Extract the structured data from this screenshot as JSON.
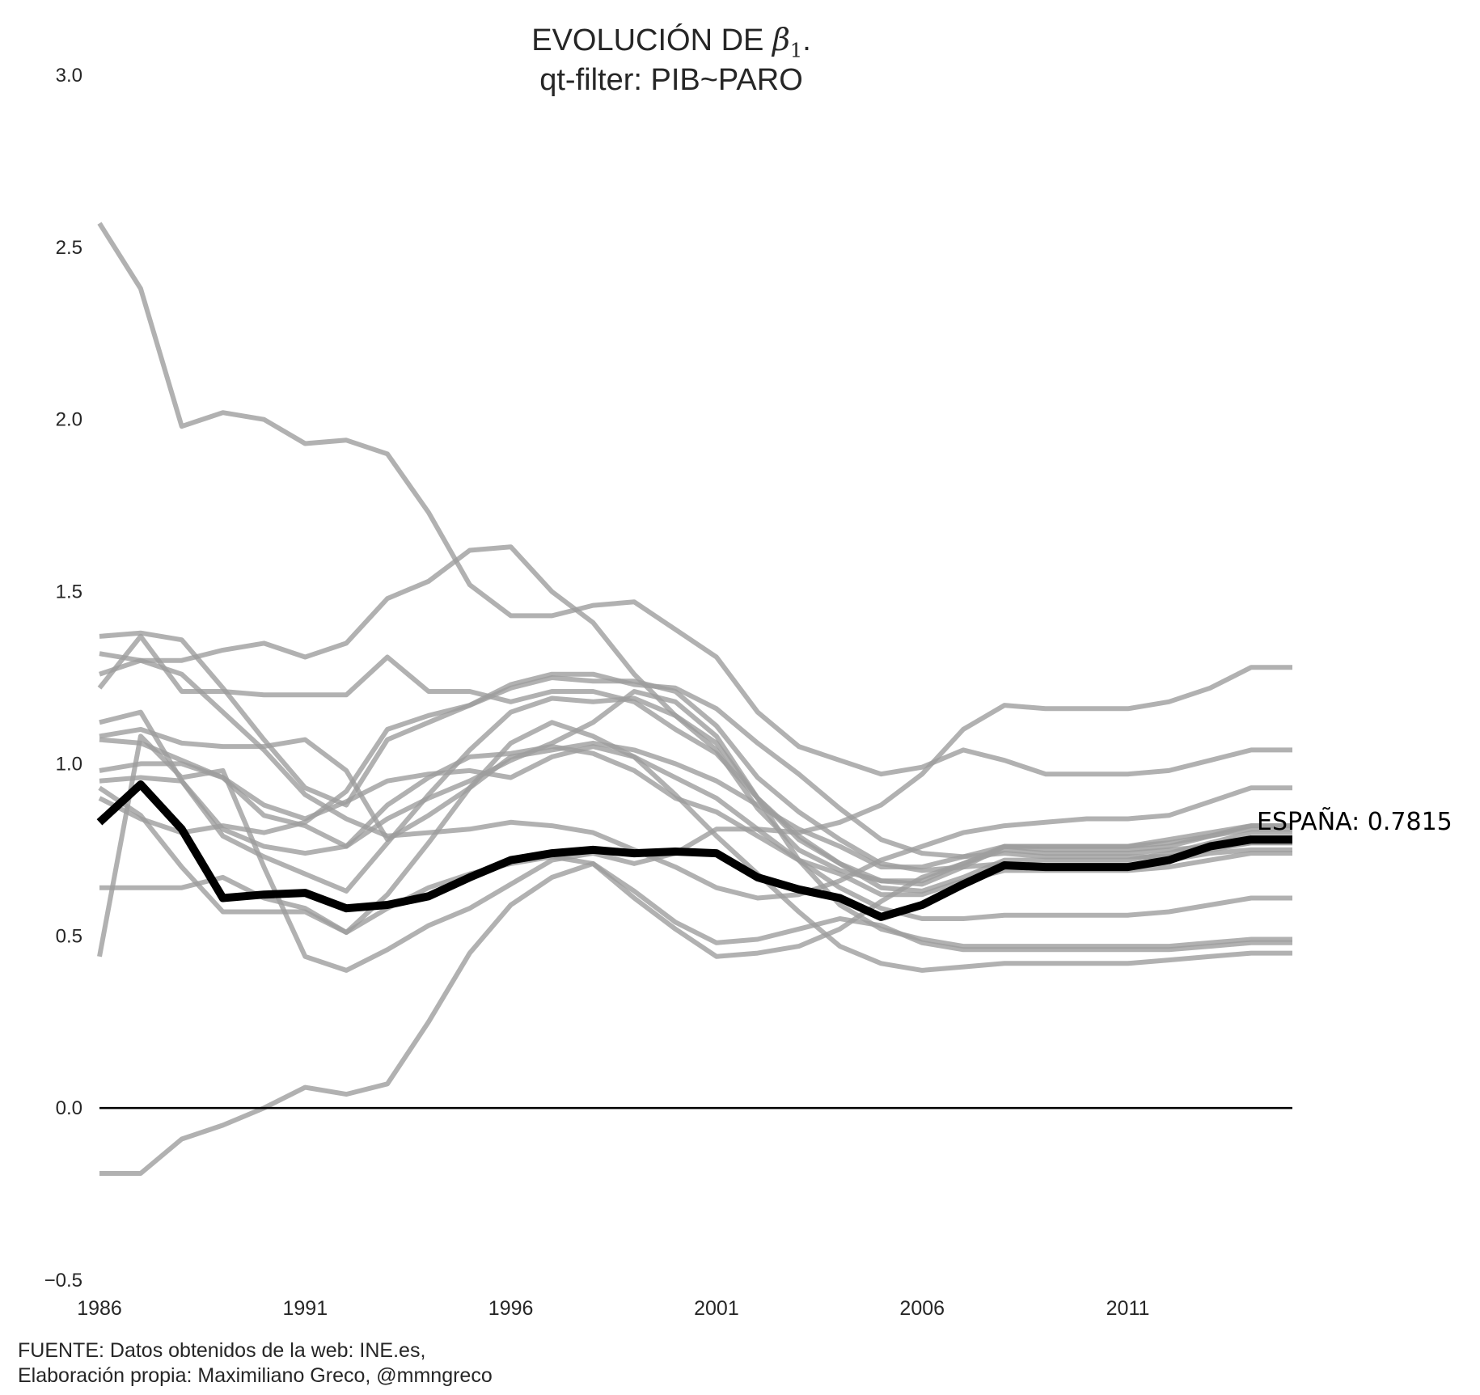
{
  "title": {
    "prefix": "EVOLUCIÓN DE ",
    "symbol": "β",
    "symbol_sub": "1",
    "suffix": ".",
    "line2": "qt-filter: PIB~PARO"
  },
  "source": {
    "line1": "FUENTE: Datos obtenidos de la web: INE.es,",
    "line2": "Elaboración propia: Maximiliano Greco, @mmngreco"
  },
  "colors": {
    "regions": "#9e9e9e",
    "spain": "#000000",
    "zero_line": "#000000",
    "text": "#262626"
  },
  "chart_data": {
    "type": "line",
    "x": [
      1986,
      1987,
      1988,
      1989,
      1990,
      1991,
      1992,
      1993,
      1994,
      1995,
      1996,
      1997,
      1998,
      1999,
      2000,
      2001,
      2002,
      2003,
      2004,
      2005,
      2006,
      2007,
      2008,
      2009,
      2010,
      2011,
      2012,
      2013,
      2014,
      2015
    ],
    "xticks": [
      "1986",
      "1991",
      "1996",
      "2001",
      "2006",
      "2011"
    ],
    "yticks": [
      "−0.5",
      "0.0",
      "0.5",
      "1.0",
      "1.5",
      "2.0",
      "2.5",
      "3.0"
    ],
    "ylim": [
      -0.5,
      3.0
    ],
    "xlim": [
      1986,
      2015
    ],
    "grid": false,
    "reference_line": 0.0,
    "annotation": "ESPAÑA: 0.7815",
    "highlight": {
      "values": [
        0.83,
        0.94,
        0.81,
        0.61,
        0.62,
        0.625,
        0.58,
        0.59,
        0.615,
        0.67,
        0.72,
        0.74,
        0.75,
        0.74,
        0.745,
        0.74,
        0.67,
        0.635,
        0.61,
        0.555,
        0.59,
        0.65,
        0.705,
        0.7,
        0.7,
        0.7,
        0.72,
        0.76,
        0.78,
        0.78
      ]
    },
    "series": [
      {
        "values": [
          2.57,
          2.38,
          1.98,
          2.02,
          2.0,
          1.93,
          1.94,
          1.9,
          1.73,
          1.52,
          1.43,
          1.43,
          1.46,
          1.47,
          1.39,
          1.31,
          1.15,
          1.05,
          1.01,
          0.97,
          0.99,
          1.04,
          1.01,
          0.97,
          0.97,
          0.97,
          0.98,
          1.01,
          1.04,
          1.04
        ]
      },
      {
        "values": [
          0.44,
          1.08,
          0.96,
          0.98,
          0.7,
          0.44,
          0.4,
          0.46,
          0.53,
          0.58,
          0.65,
          0.72,
          0.74,
          0.71,
          0.74,
          0.81,
          0.81,
          0.8,
          0.83,
          0.88,
          0.97,
          1.1,
          1.17,
          1.16,
          1.16,
          1.16,
          1.18,
          1.22,
          1.28,
          1.28
        ]
      },
      {
        "values": [
          -0.19,
          -0.19,
          -0.09,
          -0.05,
          0.0,
          0.06,
          0.04,
          0.07,
          0.25,
          0.45,
          0.59,
          0.67,
          0.71,
          0.61,
          0.52,
          0.44,
          0.45,
          0.47,
          0.52,
          0.6,
          0.67,
          0.71,
          0.75,
          0.74,
          0.74,
          0.74,
          0.75,
          0.76,
          0.77,
          0.77
        ]
      },
      {
        "values": [
          1.37,
          1.38,
          1.36,
          1.22,
          1.07,
          0.93,
          0.88,
          1.07,
          1.12,
          1.17,
          1.22,
          1.25,
          1.24,
          1.24,
          1.21,
          1.11,
          0.96,
          0.86,
          0.78,
          0.71,
          0.69,
          0.7,
          0.71,
          0.7,
          0.7,
          0.7,
          0.72,
          0.74,
          0.75,
          0.75
        ]
      },
      {
        "values": [
          1.22,
          1.37,
          1.21,
          1.21,
          1.2,
          1.2,
          1.2,
          1.31,
          1.21,
          1.21,
          1.18,
          1.21,
          1.21,
          1.18,
          1.1,
          1.03,
          0.9,
          0.79,
          0.71,
          0.64,
          0.63,
          0.67,
          0.72,
          0.72,
          0.72,
          0.72,
          0.74,
          0.77,
          0.8,
          0.8
        ]
      },
      {
        "values": [
          1.26,
          1.3,
          1.3,
          1.33,
          1.35,
          1.31,
          1.35,
          1.48,
          1.53,
          1.62,
          1.63,
          1.5,
          1.41,
          1.26,
          1.14,
          1.04,
          0.87,
          0.75,
          0.69,
          0.66,
          0.66,
          0.71,
          0.76,
          0.76,
          0.76,
          0.76,
          0.78,
          0.8,
          0.82,
          0.82
        ]
      },
      {
        "values": [
          1.32,
          1.3,
          1.26,
          1.15,
          1.04,
          0.91,
          0.84,
          0.79,
          0.8,
          0.81,
          0.83,
          0.82,
          0.8,
          0.75,
          0.7,
          0.64,
          0.61,
          0.62,
          0.66,
          0.72,
          0.76,
          0.8,
          0.82,
          0.83,
          0.84,
          0.84,
          0.85,
          0.89,
          0.93,
          0.93
        ]
      },
      {
        "values": [
          1.12,
          1.15,
          0.95,
          0.79,
          0.73,
          0.68,
          0.63,
          0.77,
          0.91,
          1.04,
          1.15,
          1.19,
          1.18,
          1.19,
          1.14,
          1.06,
          0.9,
          0.78,
          0.71,
          0.66,
          0.65,
          0.7,
          0.76,
          0.76,
          0.76,
          0.76,
          0.77,
          0.79,
          0.81,
          0.81
        ]
      },
      {
        "values": [
          1.08,
          1.1,
          1.06,
          1.05,
          1.05,
          1.07,
          0.98,
          0.78,
          0.85,
          0.93,
          1.02,
          1.04,
          1.06,
          1.04,
          1.0,
          0.95,
          0.88,
          0.81,
          0.76,
          0.7,
          0.7,
          0.73,
          0.76,
          0.75,
          0.75,
          0.75,
          0.76,
          0.79,
          0.82,
          0.82
        ]
      },
      {
        "values": [
          1.07,
          1.06,
          1.01,
          0.96,
          0.85,
          0.82,
          0.76,
          0.88,
          0.96,
          1.02,
          1.03,
          1.05,
          1.03,
          0.98,
          0.9,
          0.86,
          0.79,
          0.72,
          0.68,
          0.62,
          0.62,
          0.66,
          0.69,
          0.69,
          0.69,
          0.69,
          0.7,
          0.72,
          0.74,
          0.74
        ]
      },
      {
        "values": [
          0.98,
          1.0,
          1.0,
          0.96,
          0.88,
          0.84,
          0.89,
          0.95,
          0.97,
          0.98,
          0.96,
          1.02,
          1.05,
          1.02,
          0.96,
          0.9,
          0.81,
          0.72,
          0.64,
          0.58,
          0.55,
          0.55,
          0.56,
          0.56,
          0.56,
          0.56,
          0.57,
          0.59,
          0.61,
          0.61
        ]
      },
      {
        "values": [
          0.95,
          0.96,
          0.95,
          0.81,
          0.76,
          0.74,
          0.76,
          0.84,
          0.9,
          0.95,
          1.01,
          1.06,
          1.12,
          1.21,
          1.18,
          1.08,
          0.9,
          0.72,
          0.59,
          0.52,
          0.49,
          0.47,
          0.47,
          0.47,
          0.47,
          0.47,
          0.47,
          0.48,
          0.49,
          0.49
        ]
      },
      {
        "values": [
          0.64,
          0.64,
          0.64,
          0.67,
          0.61,
          0.58,
          0.51,
          0.58,
          0.64,
          0.68,
          0.71,
          0.73,
          0.71,
          0.63,
          0.54,
          0.48,
          0.49,
          0.52,
          0.55,
          0.53,
          0.48,
          0.46,
          0.46,
          0.46,
          0.46,
          0.46,
          0.46,
          0.47,
          0.48,
          0.48
        ]
      },
      {
        "values": [
          0.93,
          0.85,
          0.7,
          0.57,
          0.57,
          0.57,
          0.51,
          0.62,
          0.77,
          0.93,
          1.06,
          1.12,
          1.08,
          1.02,
          0.91,
          0.79,
          0.68,
          0.57,
          0.47,
          0.42,
          0.4,
          0.41,
          0.42,
          0.42,
          0.42,
          0.42,
          0.43,
          0.44,
          0.45,
          0.45
        ]
      },
      {
        "values": [
          0.9,
          0.84,
          0.8,
          0.82,
          0.8,
          0.83,
          0.92,
          1.1,
          1.14,
          1.17,
          1.23,
          1.26,
          1.26,
          1.23,
          1.22,
          1.16,
          1.06,
          0.97,
          0.87,
          0.78,
          0.74,
          0.73,
          0.74,
          0.73,
          0.73,
          0.73,
          0.73,
          0.75,
          0.77,
          0.77
        ]
      }
    ]
  }
}
